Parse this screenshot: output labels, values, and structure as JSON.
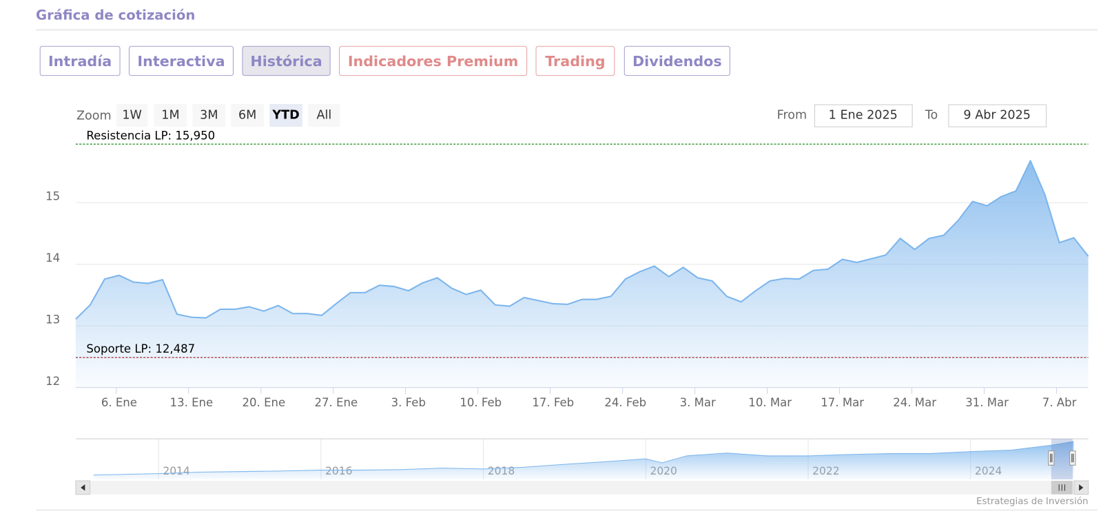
{
  "header": {
    "title": "Gráfica de cotización"
  },
  "tabs": [
    {
      "label": "Intradía",
      "color": "#8e87c4"
    },
    {
      "label": "Interactiva",
      "color": "#8e87c4"
    },
    {
      "label": "Histórica",
      "color": "#8e87c4"
    },
    {
      "label": "Indicadores Premium",
      "color": "#e08a8a"
    },
    {
      "label": "Trading",
      "color": "#e08a8a"
    },
    {
      "label": "Dividendos",
      "color": "#8e87c4"
    }
  ],
  "active_tab": 2,
  "zoom": {
    "label": "Zoom",
    "buttons": [
      "1W",
      "1M",
      "3M",
      "6M",
      "YTD",
      "All"
    ],
    "selected": 4
  },
  "range": {
    "from_label": "From",
    "from": "1 Ene 2025",
    "to_label": "To",
    "to": "9 Abr 2025"
  },
  "chart_data": [
    {
      "type": "area",
      "categories": [
        null,
        null,
        null,
        "6. Ene",
        null,
        null,
        null,
        null,
        "13. Ene",
        null,
        null,
        null,
        null,
        "20. Ene",
        null,
        null,
        null,
        null,
        "27. Ene",
        null,
        null,
        null,
        null,
        "3. Feb",
        null,
        null,
        null,
        null,
        "10. Feb",
        null,
        null,
        null,
        null,
        "17. Feb",
        null,
        null,
        null,
        null,
        "24. Feb",
        null,
        null,
        null,
        null,
        "3. Mar",
        null,
        null,
        null,
        null,
        "10. Mar",
        null,
        null,
        null,
        null,
        "17. Mar",
        null,
        null,
        null,
        null,
        "24. Mar",
        null,
        null,
        null,
        null,
        "31. Mar",
        null,
        null,
        null,
        null,
        "7. Abr",
        null,
        null
      ],
      "values": [
        13.11,
        13.34,
        13.76,
        13.82,
        13.71,
        13.69,
        13.75,
        13.19,
        13.14,
        13.13,
        13.27,
        13.27,
        13.31,
        13.24,
        13.33,
        13.2,
        13.2,
        13.17,
        13.36,
        13.54,
        13.54,
        13.66,
        13.64,
        13.57,
        13.7,
        13.78,
        13.61,
        13.51,
        13.58,
        13.34,
        13.32,
        13.46,
        13.41,
        13.36,
        13.35,
        13.43,
        13.43,
        13.48,
        13.76,
        13.88,
        13.97,
        13.8,
        13.95,
        13.78,
        13.73,
        13.48,
        13.39,
        13.57,
        13.73,
        13.77,
        13.76,
        13.9,
        13.92,
        14.08,
        14.03,
        14.09,
        14.15,
        14.42,
        14.24,
        14.42,
        14.47,
        14.71,
        15.02,
        14.95,
        15.1,
        15.19,
        15.68,
        15.13,
        14.35,
        14.43,
        14.13
      ],
      "color": "#7cb5ec",
      "ylim": [
        12,
        16
      ],
      "yticks": [
        12,
        13,
        14,
        15
      ],
      "grid": true,
      "annotations": [
        {
          "label": "Resistencia LP: 15,950",
          "value": 15.95,
          "color": "#1a8a1a"
        },
        {
          "label": "Soporte LP: 12,487",
          "value": 12.487,
          "color": "#9b1020"
        }
      ]
    },
    {
      "type": "area",
      "x": [
        2013.2,
        2014,
        2014.5,
        2015,
        2015.5,
        2016,
        2016.5,
        2017,
        2017.5,
        2018,
        2018.5,
        2019,
        2019.5,
        2020,
        2020.2,
        2020.5,
        2021,
        2021.5,
        2022,
        2022.5,
        2023,
        2023.5,
        2024,
        2024.5,
        2025,
        2025.27
      ],
      "values": [
        3.5,
        4.0,
        4.5,
        4.7,
        4.9,
        5.2,
        5.2,
        5.4,
        5.9,
        5.6,
        6.2,
        7.2,
        8.1,
        9.1,
        7.7,
        10.1,
        11.1,
        10.1,
        10.1,
        10.6,
        10.9,
        10.9,
        11.6,
        12.1,
        13.8,
        15.1
      ],
      "color": "#7cb5ec",
      "xlim": [
        2012.98,
        2025.45
      ],
      "ylim": [
        2,
        16
      ],
      "xticks": [
        2014,
        2016,
        2018,
        2020,
        2022,
        2024
      ]
    }
  ],
  "credit": "Estrategias de Inversión"
}
